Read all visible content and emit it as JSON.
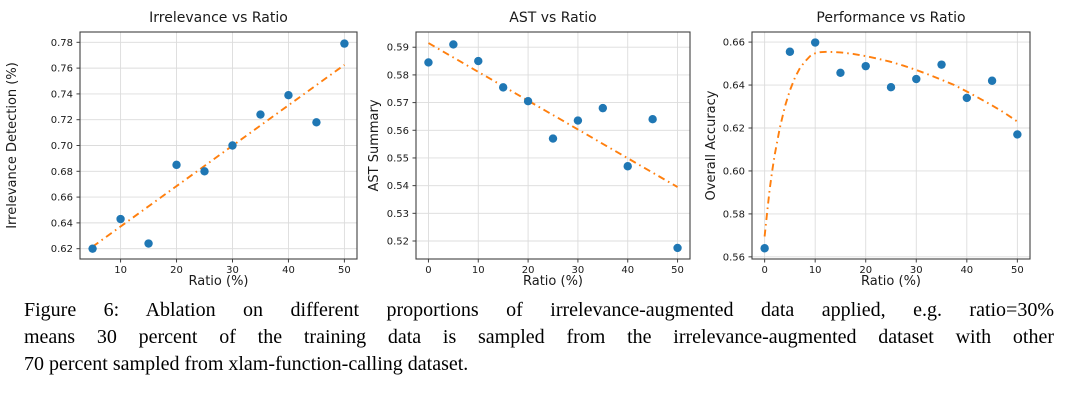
{
  "figure_caption": {
    "line1": "Figure 6: Ablation on different proportions of irrelevance-augmented data applied, e.g. ratio=30%",
    "line2": "means 30 percent of the training data is sampled from the irrelevance-augmented dataset with other",
    "line3": "70 percent sampled from xlam-function-calling dataset."
  },
  "colors": {
    "marker": "#1f77b4",
    "trend": "#ff7f0e",
    "grid": "#dcdcdc",
    "spine": "#404040",
    "text": "#1a1a1a"
  },
  "chart_data": [
    {
      "type": "scatter",
      "name": "irrelevance-vs-ratio",
      "title": "Irrelevance vs Ratio",
      "xlabel": "Ratio (%)",
      "ylabel": "Irrelevance Detection (%)",
      "x": [
        5,
        10,
        15,
        20,
        25,
        30,
        35,
        40,
        45,
        50
      ],
      "y": [
        0.62,
        0.643,
        0.624,
        0.685,
        0.68,
        0.7,
        0.724,
        0.739,
        0.718,
        0.779
      ],
      "xlim": [
        2.75,
        52.25
      ],
      "ylim": [
        0.612,
        0.788
      ],
      "xticks": [
        10,
        20,
        30,
        40,
        50
      ],
      "yticks": [
        0.62,
        0.64,
        0.66,
        0.68,
        0.7,
        0.72,
        0.74,
        0.76,
        0.78
      ],
      "grid": true,
      "trend": {
        "style": "dashdot",
        "points": [
          [
            5,
            0.6215
          ],
          [
            50,
            0.7625
          ]
        ]
      }
    },
    {
      "type": "scatter",
      "name": "ast-vs-ratio",
      "title": "AST vs Ratio",
      "xlabel": "Ratio (%)",
      "ylabel": "AST Summary",
      "x": [
        0,
        5,
        10,
        15,
        20,
        25,
        30,
        35,
        40,
        45,
        50
      ],
      "y": [
        0.5845,
        0.591,
        0.585,
        0.5755,
        0.5705,
        0.557,
        0.5635,
        0.568,
        0.547,
        0.564,
        0.5175
      ],
      "xlim": [
        -2.5,
        52.5
      ],
      "ylim": [
        0.5135,
        0.5955
      ],
      "xticks": [
        0,
        10,
        20,
        30,
        40,
        50
      ],
      "yticks": [
        0.52,
        0.53,
        0.54,
        0.55,
        0.56,
        0.57,
        0.58,
        0.59
      ],
      "grid": true,
      "trend": {
        "style": "dashdot",
        "points": [
          [
            0,
            0.5915
          ],
          [
            50,
            0.5395
          ]
        ]
      }
    },
    {
      "type": "scatter",
      "name": "performance-vs-ratio",
      "title": "Performance vs Ratio",
      "xlabel": "Ratio (%)",
      "ylabel": "Overall Accuracy",
      "x": [
        0,
        5,
        10,
        15,
        20,
        25,
        30,
        35,
        40,
        45,
        50
      ],
      "y": [
        0.564,
        0.6555,
        0.6598,
        0.6457,
        0.6488,
        0.639,
        0.6428,
        0.6495,
        0.634,
        0.642,
        0.617
      ],
      "xlim": [
        -2.5,
        52.5
      ],
      "ylim": [
        0.559,
        0.6647
      ],
      "xticks": [
        0,
        10,
        20,
        30,
        40,
        50
      ],
      "yticks": [
        0.56,
        0.58,
        0.6,
        0.62,
        0.64,
        0.66
      ],
      "grid": true,
      "trend": {
        "style": "dashdot",
        "points": [
          [
            0,
            0.5695
          ],
          [
            0.5,
            0.581
          ],
          [
            1,
            0.5915
          ],
          [
            1.5,
            0.6
          ],
          [
            2,
            0.6075
          ],
          [
            3,
            0.62
          ],
          [
            4,
            0.63
          ],
          [
            5,
            0.6375
          ],
          [
            6,
            0.6435
          ],
          [
            7,
            0.648
          ],
          [
            8,
            0.651
          ],
          [
            9,
            0.6535
          ],
          [
            10,
            0.6548
          ],
          [
            11,
            0.6553
          ],
          [
            12.5,
            0.6555
          ],
          [
            15,
            0.6552
          ],
          [
            17.5,
            0.6545
          ],
          [
            20,
            0.6535
          ],
          [
            22.5,
            0.6522
          ],
          [
            25,
            0.6508
          ],
          [
            27.5,
            0.649
          ],
          [
            30,
            0.647
          ],
          [
            32.5,
            0.6448
          ],
          [
            35,
            0.6425
          ],
          [
            37.5,
            0.64
          ],
          [
            40,
            0.637
          ],
          [
            42.5,
            0.6338
          ],
          [
            45,
            0.6305
          ],
          [
            47.5,
            0.627
          ],
          [
            50,
            0.623
          ]
        ]
      }
    }
  ]
}
